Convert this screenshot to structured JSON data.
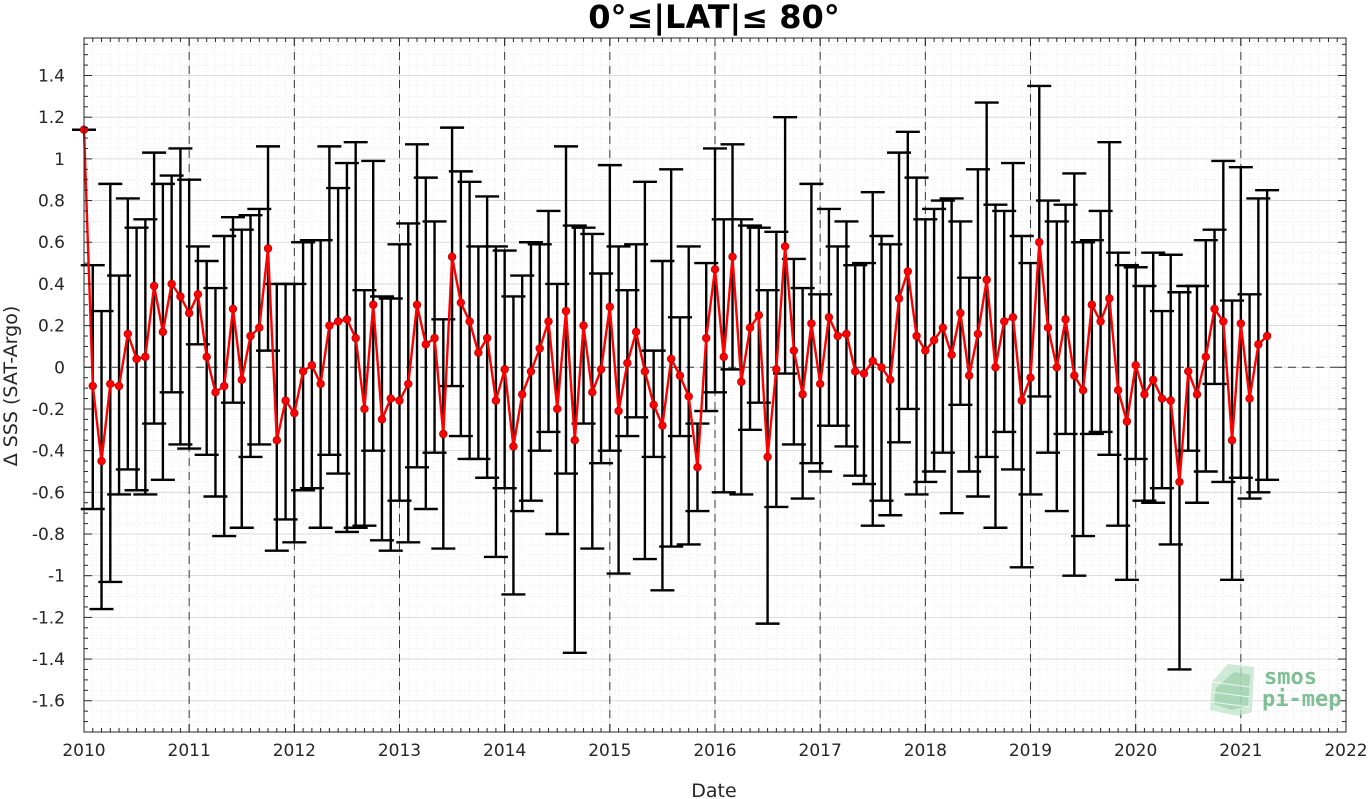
{
  "chart_data": {
    "type": "line",
    "title": "0°≤|LAT|≤ 80°",
    "xlabel": "Date",
    "ylabel": "Δ SSS (SAT-Argo)",
    "xlim": [
      2010,
      2022
    ],
    "ylim": [
      -1.75,
      1.58
    ],
    "x_ticks": [
      "2010",
      "2011",
      "2012",
      "2013",
      "2014",
      "2015",
      "2016",
      "2017",
      "2018",
      "2019",
      "2020",
      "2021",
      "2022"
    ],
    "y_ticks": [
      "-1.6",
      "-1.4",
      "-1.2",
      "-1",
      "-0.8",
      "-0.6",
      "-0.4",
      "-0.2",
      "0",
      "0.2",
      "0.4",
      "0.6",
      "0.8",
      "1",
      "1.2",
      "1.4"
    ],
    "grid": true,
    "year_lines": "dashed vertical lines at each January",
    "zero_line": "dashed horizontal line at 0",
    "series": [
      {
        "color": "#ff0000",
        "errorbar_color": "#000000",
        "points": [
          {
            "x": "2010-01",
            "y": 1.14,
            "lo": 1.14,
            "hi": 1.14
          },
          {
            "x": "2010-02",
            "y": -0.09,
            "lo": -0.68,
            "hi": 0.49
          },
          {
            "x": "2010-03",
            "y": -0.45,
            "lo": -1.16,
            "hi": 0.27
          },
          {
            "x": "2010-04",
            "y": -0.08,
            "lo": -1.03,
            "hi": 0.88
          },
          {
            "x": "2010-05",
            "y": -0.09,
            "lo": -0.61,
            "hi": 0.44
          },
          {
            "x": "2010-06",
            "y": 0.16,
            "lo": -0.49,
            "hi": 0.81
          },
          {
            "x": "2010-07",
            "y": 0.04,
            "lo": -0.59,
            "hi": 0.67
          },
          {
            "x": "2010-08",
            "y": 0.05,
            "lo": -0.61,
            "hi": 0.71
          },
          {
            "x": "2010-09",
            "y": 0.39,
            "lo": -0.27,
            "hi": 1.03
          },
          {
            "x": "2010-10",
            "y": 0.17,
            "lo": -0.54,
            "hi": 0.88
          },
          {
            "x": "2010-11",
            "y": 0.4,
            "lo": -0.12,
            "hi": 0.92
          },
          {
            "x": "2010-12",
            "y": 0.34,
            "lo": -0.37,
            "hi": 1.05
          },
          {
            "x": "2011-01",
            "y": 0.26,
            "lo": -0.39,
            "hi": 0.9
          },
          {
            "x": "2011-02",
            "y": 0.35,
            "lo": 0.11,
            "hi": 0.58
          },
          {
            "x": "2011-03",
            "y": 0.05,
            "lo": -0.42,
            "hi": 0.51
          },
          {
            "x": "2011-04",
            "y": -0.12,
            "lo": -0.62,
            "hi": 0.38
          },
          {
            "x": "2011-05",
            "y": -0.09,
            "lo": -0.81,
            "hi": 0.63
          },
          {
            "x": "2011-06",
            "y": 0.28,
            "lo": -0.17,
            "hi": 0.72
          },
          {
            "x": "2011-07",
            "y": -0.06,
            "lo": -0.77,
            "hi": 0.66
          },
          {
            "x": "2011-08",
            "y": 0.15,
            "lo": -0.43,
            "hi": 0.73
          },
          {
            "x": "2011-09",
            "y": 0.19,
            "lo": -0.37,
            "hi": 0.76
          },
          {
            "x": "2011-10",
            "y": 0.57,
            "lo": 0.08,
            "hi": 1.06
          },
          {
            "x": "2011-11",
            "y": -0.35,
            "lo": -0.88,
            "hi": 0.4
          },
          {
            "x": "2011-12",
            "y": -0.16,
            "lo": -0.73,
            "hi": 0.4
          },
          {
            "x": "2012-01",
            "y": -0.22,
            "lo": -0.84,
            "hi": 0.4
          },
          {
            "x": "2012-02",
            "y": -0.02,
            "lo": -0.59,
            "hi": 0.6
          },
          {
            "x": "2012-03",
            "y": 0.01,
            "lo": -0.58,
            "hi": 0.61
          },
          {
            "x": "2012-04",
            "y": -0.08,
            "lo": -0.77,
            "hi": 0.61
          },
          {
            "x": "2012-05",
            "y": 0.2,
            "lo": -0.42,
            "hi": 1.06
          },
          {
            "x": "2012-06",
            "y": 0.22,
            "lo": -0.51,
            "hi": 0.86
          },
          {
            "x": "2012-07",
            "y": 0.23,
            "lo": -0.79,
            "hi": 0.98
          },
          {
            "x": "2012-08",
            "y": 0.14,
            "lo": -0.77,
            "hi": 1.08
          },
          {
            "x": "2012-09",
            "y": -0.2,
            "lo": -0.76,
            "hi": 0.37
          },
          {
            "x": "2012-10",
            "y": 0.3,
            "lo": -0.4,
            "hi": 0.99
          },
          {
            "x": "2012-11",
            "y": -0.25,
            "lo": -0.83,
            "hi": 0.34
          },
          {
            "x": "2012-12",
            "y": -0.15,
            "lo": -0.88,
            "hi": 0.33
          },
          {
            "x": "2013-01",
            "y": -0.16,
            "lo": -0.64,
            "hi": 0.59
          },
          {
            "x": "2013-02",
            "y": -0.08,
            "lo": -0.84,
            "hi": 0.69
          },
          {
            "x": "2013-03",
            "y": 0.3,
            "lo": -0.48,
            "hi": 1.07
          },
          {
            "x": "2013-04",
            "y": 0.11,
            "lo": -0.68,
            "hi": 0.91
          },
          {
            "x": "2013-05",
            "y": 0.14,
            "lo": -0.41,
            "hi": 0.7
          },
          {
            "x": "2013-06",
            "y": -0.32,
            "lo": -0.87,
            "hi": 0.23
          },
          {
            "x": "2013-07",
            "y": 0.53,
            "lo": -0.09,
            "hi": 1.15
          },
          {
            "x": "2013-08",
            "y": 0.31,
            "lo": -0.33,
            "hi": 0.94
          },
          {
            "x": "2013-09",
            "y": 0.22,
            "lo": -0.44,
            "hi": 0.89
          },
          {
            "x": "2013-10",
            "y": 0.07,
            "lo": -0.44,
            "hi": 0.58
          },
          {
            "x": "2013-11",
            "y": 0.14,
            "lo": -0.53,
            "hi": 0.82
          },
          {
            "x": "2013-12",
            "y": -0.16,
            "lo": -0.91,
            "hi": 0.58
          },
          {
            "x": "2014-01",
            "y": -0.01,
            "lo": -0.58,
            "hi": 0.56
          },
          {
            "x": "2014-02",
            "y": -0.38,
            "lo": -1.09,
            "hi": 0.34
          },
          {
            "x": "2014-03",
            "y": -0.13,
            "lo": -0.69,
            "hi": 0.44
          },
          {
            "x": "2014-04",
            "y": -0.02,
            "lo": -0.64,
            "hi": 0.6
          },
          {
            "x": "2014-05",
            "y": 0.09,
            "lo": -0.4,
            "hi": 0.59
          },
          {
            "x": "2014-06",
            "y": 0.22,
            "lo": -0.31,
            "hi": 0.75
          },
          {
            "x": "2014-07",
            "y": -0.2,
            "lo": -0.8,
            "hi": 0.4
          },
          {
            "x": "2014-08",
            "y": 0.27,
            "lo": -0.51,
            "hi": 1.06
          },
          {
            "x": "2014-09",
            "y": -0.35,
            "lo": -1.37,
            "hi": 0.68
          },
          {
            "x": "2014-10",
            "y": 0.2,
            "lo": -0.27,
            "hi": 0.67
          },
          {
            "x": "2014-11",
            "y": -0.12,
            "lo": -0.87,
            "hi": 0.64
          },
          {
            "x": "2014-12",
            "y": -0.01,
            "lo": -0.46,
            "hi": 0.45
          },
          {
            "x": "2015-01",
            "y": 0.29,
            "lo": -0.4,
            "hi": 0.97
          },
          {
            "x": "2015-02",
            "y": -0.21,
            "lo": -0.99,
            "hi": 0.58
          },
          {
            "x": "2015-03",
            "y": 0.02,
            "lo": -0.33,
            "hi": 0.37
          },
          {
            "x": "2015-04",
            "y": 0.17,
            "lo": -0.24,
            "hi": 0.59
          },
          {
            "x": "2015-05",
            "y": -0.02,
            "lo": -0.92,
            "hi": 0.89
          },
          {
            "x": "2015-06",
            "y": -0.18,
            "lo": -0.43,
            "hi": 0.08
          },
          {
            "x": "2015-07",
            "y": -0.28,
            "lo": -1.07,
            "hi": 0.51
          },
          {
            "x": "2015-08",
            "y": 0.04,
            "lo": -0.86,
            "hi": 0.95
          },
          {
            "x": "2015-09",
            "y": -0.04,
            "lo": -0.33,
            "hi": 0.24
          },
          {
            "x": "2015-10",
            "y": -0.14,
            "lo": -0.85,
            "hi": 0.58
          },
          {
            "x": "2015-11",
            "y": -0.48,
            "lo": -0.69,
            "hi": -0.27
          },
          {
            "x": "2015-12",
            "y": 0.14,
            "lo": -0.21,
            "hi": 0.5
          },
          {
            "x": "2016-01",
            "y": 0.47,
            "lo": -0.12,
            "hi": 1.05
          },
          {
            "x": "2016-02",
            "y": 0.05,
            "lo": -0.6,
            "hi": 0.71
          },
          {
            "x": "2016-03",
            "y": 0.53,
            "lo": -0.01,
            "hi": 1.07
          },
          {
            "x": "2016-04",
            "y": -0.07,
            "lo": -0.61,
            "hi": 0.71
          },
          {
            "x": "2016-05",
            "y": 0.19,
            "lo": -0.3,
            "hi": 0.68
          },
          {
            "x": "2016-06",
            "y": 0.25,
            "lo": -0.17,
            "hi": 0.67
          },
          {
            "x": "2016-07",
            "y": -0.43,
            "lo": -1.23,
            "hi": 0.37
          },
          {
            "x": "2016-08",
            "y": -0.01,
            "lo": -0.67,
            "hi": 0.65
          },
          {
            "x": "2016-09",
            "y": 0.58,
            "lo": -0.03,
            "hi": 1.2
          },
          {
            "x": "2016-10",
            "y": 0.08,
            "lo": -0.37,
            "hi": 0.52
          },
          {
            "x": "2016-11",
            "y": -0.13,
            "lo": -0.63,
            "hi": 0.38
          },
          {
            "x": "2016-12",
            "y": 0.21,
            "lo": -0.46,
            "hi": 0.88
          },
          {
            "x": "2017-01",
            "y": -0.08,
            "lo": -0.5,
            "hi": 0.35
          },
          {
            "x": "2017-02",
            "y": 0.24,
            "lo": -0.28,
            "hi": 0.76
          },
          {
            "x": "2017-03",
            "y": 0.15,
            "lo": -0.28,
            "hi": 0.58
          },
          {
            "x": "2017-04",
            "y": 0.16,
            "lo": -0.38,
            "hi": 0.7
          },
          {
            "x": "2017-05",
            "y": -0.02,
            "lo": -0.52,
            "hi": 0.49
          },
          {
            "x": "2017-06",
            "y": -0.03,
            "lo": -0.56,
            "hi": 0.5
          },
          {
            "x": "2017-07",
            "y": 0.03,
            "lo": -0.76,
            "hi": 0.84
          },
          {
            "x": "2017-08",
            "y": 0.0,
            "lo": -0.64,
            "hi": 0.63
          },
          {
            "x": "2017-09",
            "y": -0.06,
            "lo": -0.71,
            "hi": 0.59
          },
          {
            "x": "2017-10",
            "y": 0.33,
            "lo": -0.36,
            "hi": 1.03
          },
          {
            "x": "2017-11",
            "y": 0.46,
            "lo": -0.2,
            "hi": 1.13
          },
          {
            "x": "2017-12",
            "y": 0.15,
            "lo": -0.61,
            "hi": 0.91
          },
          {
            "x": "2018-01",
            "y": 0.08,
            "lo": -0.55,
            "hi": 0.71
          },
          {
            "x": "2018-02",
            "y": 0.13,
            "lo": -0.5,
            "hi": 0.76
          },
          {
            "x": "2018-03",
            "y": 0.19,
            "lo": -0.41,
            "hi": 0.8
          },
          {
            "x": "2018-04",
            "y": 0.06,
            "lo": -0.7,
            "hi": 0.81
          },
          {
            "x": "2018-05",
            "y": 0.26,
            "lo": -0.18,
            "hi": 0.7
          },
          {
            "x": "2018-06",
            "y": -0.04,
            "lo": -0.5,
            "hi": 0.43
          },
          {
            "x": "2018-07",
            "y": 0.16,
            "lo": -0.62,
            "hi": 0.95
          },
          {
            "x": "2018-08",
            "y": 0.42,
            "lo": -0.43,
            "hi": 1.27
          },
          {
            "x": "2018-09",
            "y": 0.0,
            "lo": -0.77,
            "hi": 0.78
          },
          {
            "x": "2018-10",
            "y": 0.22,
            "lo": -0.31,
            "hi": 0.75
          },
          {
            "x": "2018-11",
            "y": 0.24,
            "lo": -0.49,
            "hi": 0.98
          },
          {
            "x": "2018-12",
            "y": -0.16,
            "lo": -0.96,
            "hi": 0.63
          },
          {
            "x": "2019-01",
            "y": -0.05,
            "lo": -0.61,
            "hi": 0.5
          },
          {
            "x": "2019-02",
            "y": 0.6,
            "lo": -0.14,
            "hi": 1.35
          },
          {
            "x": "2019-03",
            "y": 0.19,
            "lo": -0.41,
            "hi": 0.8
          },
          {
            "x": "2019-04",
            "y": 0.0,
            "lo": -0.69,
            "hi": 0.7
          },
          {
            "x": "2019-05",
            "y": 0.23,
            "lo": -0.32,
            "hi": 0.78
          },
          {
            "x": "2019-06",
            "y": -0.04,
            "lo": -1.0,
            "hi": 0.93
          },
          {
            "x": "2019-07",
            "y": -0.11,
            "lo": -0.81,
            "hi": 0.6
          },
          {
            "x": "2019-08",
            "y": 0.3,
            "lo": -0.32,
            "hi": 0.61
          },
          {
            "x": "2019-09",
            "y": 0.22,
            "lo": -0.31,
            "hi": 0.75
          },
          {
            "x": "2019-10",
            "y": 0.33,
            "lo": -0.42,
            "hi": 1.08
          },
          {
            "x": "2019-11",
            "y": -0.11,
            "lo": -0.76,
            "hi": 0.55
          },
          {
            "x": "2019-12",
            "y": -0.26,
            "lo": -1.02,
            "hi": 0.49
          },
          {
            "x": "2020-01",
            "y": 0.01,
            "lo": -0.44,
            "hi": 0.48
          },
          {
            "x": "2020-02",
            "y": -0.13,
            "lo": -0.64,
            "hi": 0.39
          },
          {
            "x": "2020-03",
            "y": -0.06,
            "lo": -0.65,
            "hi": 0.55
          },
          {
            "x": "2020-04",
            "y": -0.15,
            "lo": -0.58,
            "hi": 0.27
          },
          {
            "x": "2020-05",
            "y": -0.16,
            "lo": -0.85,
            "hi": 0.54
          },
          {
            "x": "2020-06",
            "y": -0.55,
            "lo": -1.45,
            "hi": 0.36
          },
          {
            "x": "2020-07",
            "y": -0.02,
            "lo": -0.4,
            "hi": 0.39
          },
          {
            "x": "2020-08",
            "y": -0.13,
            "lo": -0.65,
            "hi": 0.39
          },
          {
            "x": "2020-09",
            "y": 0.05,
            "lo": -0.5,
            "hi": 0.61
          },
          {
            "x": "2020-10",
            "y": 0.28,
            "lo": -0.08,
            "hi": 0.66
          },
          {
            "x": "2020-11",
            "y": 0.22,
            "lo": -0.55,
            "hi": 0.99
          },
          {
            "x": "2020-12",
            "y": -0.35,
            "lo": -1.02,
            "hi": 0.32
          },
          {
            "x": "2021-01",
            "y": 0.21,
            "lo": -0.53,
            "hi": 0.96
          },
          {
            "x": "2021-02",
            "y": -0.15,
            "lo": -0.63,
            "hi": 0.35
          },
          {
            "x": "2021-03",
            "y": 0.11,
            "lo": -0.6,
            "hi": 0.81
          },
          {
            "x": "2021-04",
            "y": 0.15,
            "lo": -0.54,
            "hi": 0.85
          }
        ]
      }
    ]
  },
  "logo": {
    "line1": "smos",
    "line2": "pi-mep",
    "color": "#7fbf95"
  }
}
